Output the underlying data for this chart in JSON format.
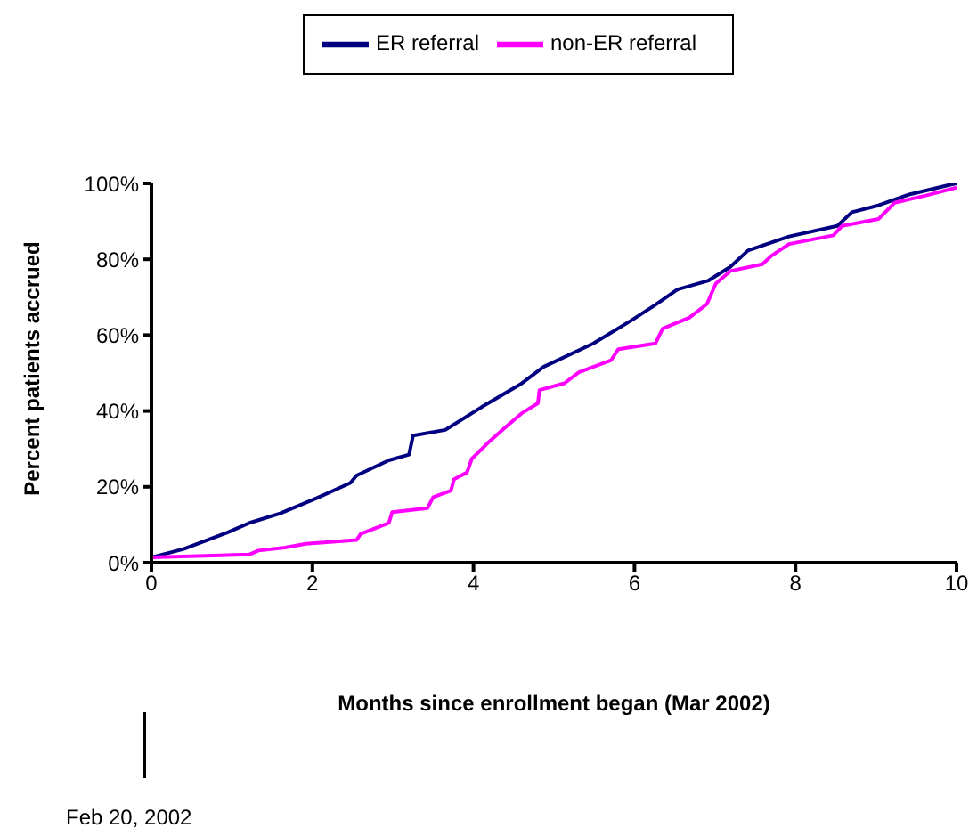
{
  "chart_data": {
    "type": "line",
    "xlabel": "Months since enrollment began (Mar 2002)",
    "ylabel": "Percent patients accrued",
    "xlim": [
      0,
      10
    ],
    "xticks": [
      0,
      2,
      4,
      6,
      8,
      10
    ],
    "ylim": [
      0,
      100
    ],
    "yticks": [
      {
        "value": 0,
        "label": "0%"
      },
      {
        "value": 20,
        "label": "20%"
      },
      {
        "value": 40,
        "label": "40%"
      },
      {
        "value": 60,
        "label": "60%"
      },
      {
        "value": 80,
        "label": "80%"
      },
      {
        "value": 100,
        "label": "100%"
      }
    ],
    "grid": false,
    "legend": "top",
    "marker": "none",
    "annotations": [
      "Feb 20, 2002"
    ],
    "series": [
      {
        "name": "ER referral",
        "color": "#000080",
        "x": [
          0,
          0.4,
          0.95,
          1.22,
          1.6,
          2.05,
          2.47,
          2.55,
          2.95,
          3.2,
          3.25,
          3.65,
          4.1,
          4.58,
          4.87,
          5.49,
          5.97,
          6.26,
          6.53,
          6.92,
          7.19,
          7.41,
          7.92,
          8.52,
          8.7,
          9.03,
          9.4,
          9.91,
          10
        ],
        "values": [
          1.4,
          3.6,
          8,
          10.5,
          13,
          17,
          21,
          23,
          27,
          28.5,
          33.5,
          35,
          41,
          47,
          51.6,
          57.8,
          64,
          68,
          72,
          74.4,
          78,
          82.3,
          86,
          88.8,
          92.4,
          94.2,
          97,
          99.6,
          100
        ]
      },
      {
        "name": "non-ER referral",
        "color": "#ff00ff",
        "x": [
          0,
          1.22,
          1.33,
          1.66,
          1.92,
          2.55,
          2.6,
          2.95,
          2.99,
          3.43,
          3.5,
          3.72,
          3.76,
          3.92,
          3.98,
          4.2,
          4.38,
          4.6,
          4.8,
          4.82,
          5.13,
          5.31,
          5.71,
          5.8,
          6.26,
          6.35,
          6.68,
          6.9,
          7.01,
          7.19,
          7.59,
          7.7,
          7.92,
          8.47,
          8.58,
          9.03,
          9.23,
          9.62,
          10
        ],
        "values": [
          1.4,
          2.2,
          3.2,
          4,
          5,
          6,
          7.6,
          10.5,
          13.3,
          14.4,
          17.3,
          19,
          22,
          23.8,
          27.4,
          32,
          35.4,
          39.4,
          42,
          45.5,
          47.3,
          50.2,
          53.4,
          56.3,
          57.8,
          61.7,
          64.6,
          68.2,
          73.6,
          76.9,
          78.7,
          80.9,
          84,
          86.3,
          88.8,
          90.6,
          94.9,
          96.8,
          98.9
        ]
      }
    ]
  }
}
